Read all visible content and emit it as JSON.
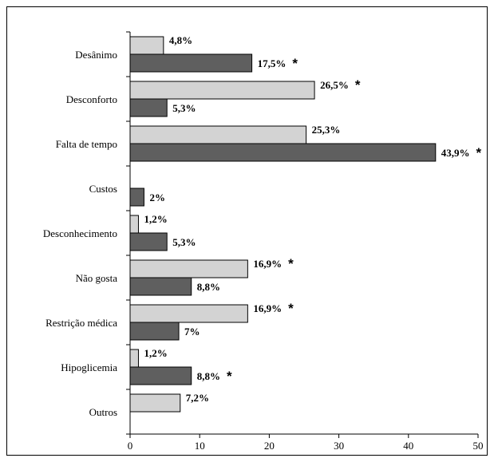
{
  "chart_data": {
    "type": "bar",
    "orientation": "horizontal",
    "categories": [
      "Desânimo",
      "Desconforto",
      "Falta de tempo",
      "Custos",
      "Desconhecimento",
      "Não gosta",
      "Restrição médica",
      "Hipoglicemia",
      "Outros"
    ],
    "series": [
      {
        "color": "#d3d3d3",
        "values": [
          4.8,
          26.5,
          25.3,
          null,
          1.2,
          16.9,
          16.9,
          1.2,
          7.2
        ],
        "labels": [
          "4,8%",
          "26,5%",
          "25,3%",
          "",
          "1,2%",
          "16,9%",
          "16,9%",
          "1,2%",
          "7,2%"
        ],
        "significant": [
          false,
          true,
          false,
          false,
          false,
          true,
          true,
          false,
          false
        ]
      },
      {
        "color": "#5f5f5f",
        "values": [
          17.5,
          5.3,
          43.9,
          2,
          5.3,
          8.8,
          7,
          8.8,
          null
        ],
        "labels": [
          "17,5%",
          "5,3%",
          "43,9%",
          "2%",
          "5,3%",
          "8,8%",
          "7%",
          "8,8%",
          ""
        ],
        "significant": [
          true,
          false,
          true,
          false,
          false,
          false,
          false,
          true,
          false
        ]
      }
    ],
    "significance_marker": "*",
    "xlim": [
      0,
      50
    ],
    "xticks": [
      "0",
      "10",
      "20",
      "30",
      "40",
      "50"
    ],
    "grid": false,
    "legend": "none"
  }
}
